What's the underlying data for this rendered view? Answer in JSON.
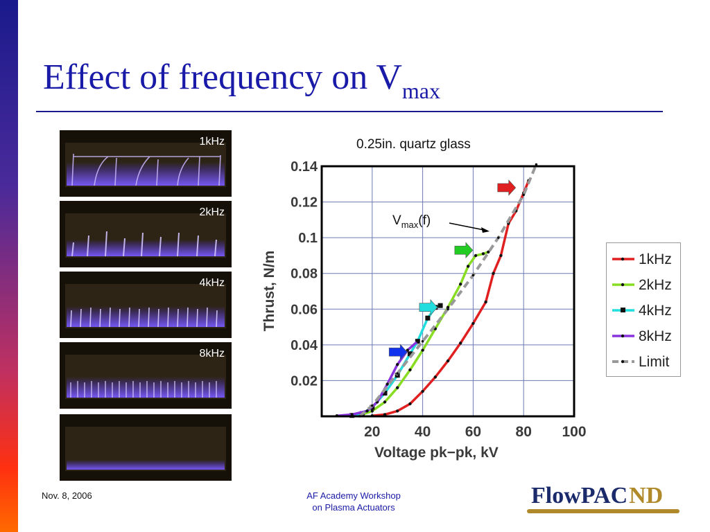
{
  "slide": {
    "title_main": "Effect of frequency on V",
    "title_sub": "max",
    "footer_date": "Nov. 8, 2006",
    "footer_line1": "AF Academy Workshop",
    "footer_line2": "on Plasma Actuators",
    "logo_text": "FlowPAC",
    "logo_mark": "ND"
  },
  "photos": [
    {
      "label": "1kHz"
    },
    {
      "label": "2kHz"
    },
    {
      "label": "4kHz"
    },
    {
      "label": "8kHz"
    },
    {
      "label": ""
    }
  ],
  "annotation": {
    "text": "V",
    "sub": "max",
    "suffix": "(f)"
  },
  "chart_data": {
    "type": "line",
    "title": "0.25in. quartz glass",
    "xlabel": "Voltage pk−pk, kV",
    "ylabel": "Thrust, N/m",
    "xlim": [
      0,
      100
    ],
    "ylim": [
      0,
      0.14
    ],
    "xticks": [
      "20",
      "40",
      "60",
      "80",
      "100"
    ],
    "yticks": [
      "0.02",
      "0.04",
      "0.06",
      "0.08",
      "0.1",
      "0.12",
      "0.14"
    ],
    "grid": true,
    "legend_position": "right",
    "series": [
      {
        "name": "1kHz",
        "color": "#e02020",
        "marker": "dot",
        "x": [
          20,
          25,
          30,
          35,
          40,
          45,
          50,
          55,
          60,
          65,
          68,
          71,
          74,
          77,
          80,
          82
        ],
        "y": [
          0.0003,
          0.001,
          0.003,
          0.007,
          0.014,
          0.022,
          0.031,
          0.041,
          0.052,
          0.064,
          0.08,
          0.09,
          0.108,
          0.115,
          0.125,
          0.132
        ]
      },
      {
        "name": "2kHz",
        "color": "#88dd22",
        "marker": "star",
        "x": [
          15,
          20,
          25,
          30,
          35,
          40,
          45,
          50,
          55,
          58,
          61,
          64,
          66
        ],
        "y": [
          0.0005,
          0.003,
          0.008,
          0.016,
          0.026,
          0.037,
          0.049,
          0.061,
          0.074,
          0.084,
          0.09,
          0.091,
          0.092
        ]
      },
      {
        "name": "4kHz",
        "color": "#22dddd",
        "marker": "square",
        "x": [
          12,
          16,
          20,
          25,
          30,
          35,
          38,
          42,
          45,
          47
        ],
        "y": [
          0.0005,
          0.0015,
          0.005,
          0.013,
          0.023,
          0.035,
          0.042,
          0.055,
          0.061,
          0.062
        ]
      },
      {
        "name": "8kHz",
        "color": "#8833dd",
        "marker": "dot",
        "x": [
          6,
          12,
          18,
          22,
          26,
          30,
          34,
          38
        ],
        "y": [
          0.0003,
          0.001,
          0.003,
          0.008,
          0.018,
          0.029,
          0.037,
          0.042
        ]
      },
      {
        "name": "Limit",
        "color": "#999999",
        "marker": "dash",
        "x": [
          15,
          20,
          30,
          40,
          50,
          60,
          70,
          80,
          85
        ],
        "y": [
          0.0,
          0.006,
          0.024,
          0.042,
          0.06,
          0.079,
          0.1,
          0.124,
          0.141
        ]
      }
    ],
    "markers_arrows": [
      {
        "series": "1kHz",
        "x": 73,
        "y": 0.128,
        "color": "#e02020"
      },
      {
        "series": "2kHz",
        "x": 56,
        "y": 0.093,
        "color": "#22cc22"
      },
      {
        "series": "4kHz",
        "x": 42,
        "y": 0.061,
        "color": "#22dddd"
      },
      {
        "series": "8kHz",
        "x": 30,
        "y": 0.036,
        "color": "#1133ee"
      }
    ]
  }
}
